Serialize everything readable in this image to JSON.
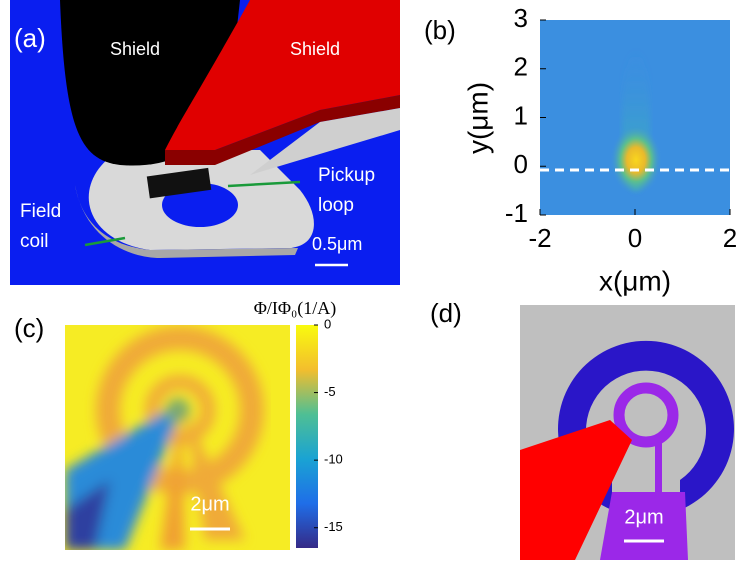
{
  "panels": {
    "a": {
      "label": "(a)",
      "shield_left": "Shield",
      "shield_right": "Shield",
      "pickup": [
        "Pickup",
        "loop"
      ],
      "field": [
        "Field",
        "coil"
      ],
      "scale": "0.5μm"
    },
    "b": {
      "label": "(b)",
      "xlabel": "x(μm)",
      "ylabel": "y(μm)",
      "xlim": [
        -2,
        2
      ],
      "ylim": [
        -1,
        3
      ],
      "xticks": [
        -2,
        0,
        2
      ],
      "yticks": [
        -1,
        0,
        1,
        2,
        3
      ]
    },
    "c": {
      "label": "(c)",
      "colorbar_label": "Φ/IΦ₀(1/A)",
      "clim": [
        0,
        -16.5
      ],
      "cticks": [
        0,
        -5,
        -10,
        -15
      ],
      "scale": "2μm"
    },
    "d": {
      "label": "(d)",
      "scale": "2μm"
    }
  }
}
